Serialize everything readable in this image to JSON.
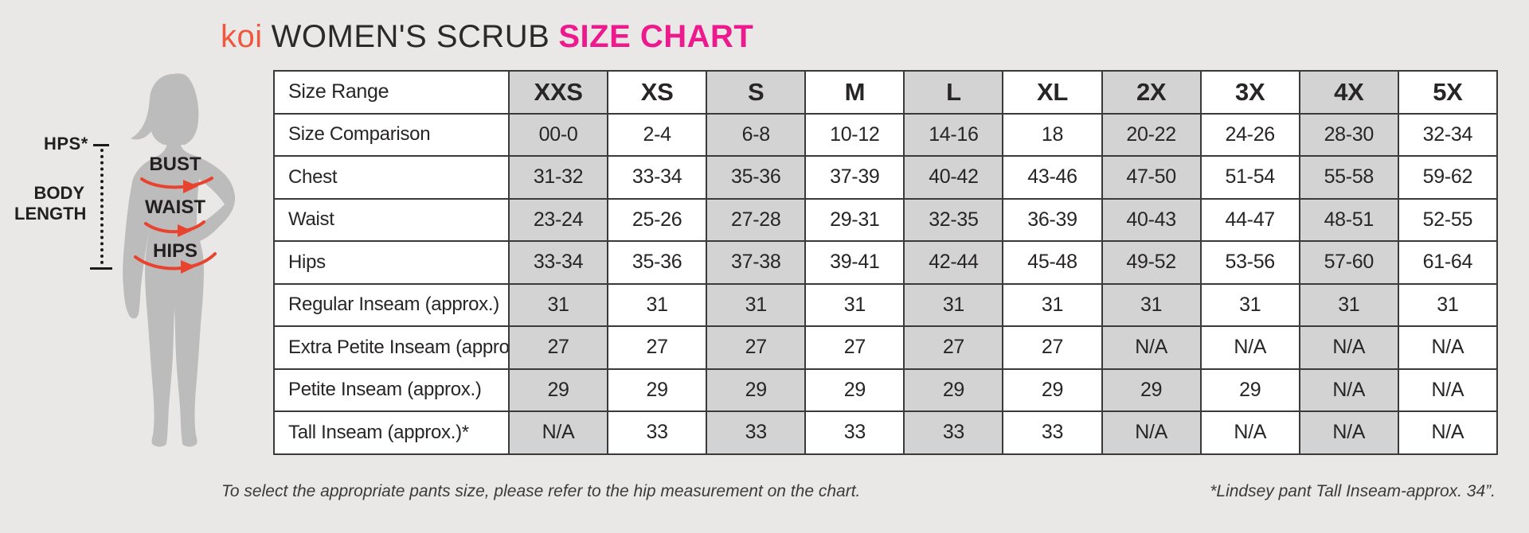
{
  "title": {
    "brand": "koi",
    "middle": "WOMEN'S SCRUB",
    "highlight": "SIZE CHART"
  },
  "figure": {
    "hps_label": "HPS*",
    "body_length_label": "BODY LENGTH",
    "bust_label": "BUST",
    "waist_label": "WAIST",
    "hips_label": "HIPS"
  },
  "chart_data": {
    "type": "table",
    "title": "koi WOMEN'S SCRUB SIZE CHART",
    "columns": [
      "Size Range",
      "XXS",
      "XS",
      "S",
      "M",
      "L",
      "XL",
      "2X",
      "3X",
      "4X",
      "5X"
    ],
    "shaded_columns": [
      "XXS",
      "S",
      "L",
      "2X",
      "4X"
    ],
    "rows": [
      {
        "label": "Size Comparison",
        "values": [
          "00-0",
          "2-4",
          "6-8",
          "10-12",
          "14-16",
          "18",
          "20-22",
          "24-26",
          "28-30",
          "32-34"
        ]
      },
      {
        "label": "Chest",
        "values": [
          "31-32",
          "33-34",
          "35-36",
          "37-39",
          "40-42",
          "43-46",
          "47-50",
          "51-54",
          "55-58",
          "59-62"
        ]
      },
      {
        "label": "Waist",
        "values": [
          "23-24",
          "25-26",
          "27-28",
          "29-31",
          "32-35",
          "36-39",
          "40-43",
          "44-47",
          "48-51",
          "52-55"
        ]
      },
      {
        "label": "Hips",
        "values": [
          "33-34",
          "35-36",
          "37-38",
          "39-41",
          "42-44",
          "45-48",
          "49-52",
          "53-56",
          "57-60",
          "61-64"
        ]
      },
      {
        "label": "Regular Inseam (approx.)",
        "values": [
          "31",
          "31",
          "31",
          "31",
          "31",
          "31",
          "31",
          "31",
          "31",
          "31"
        ]
      },
      {
        "label": "Extra Petite Inseam (approx.)",
        "values": [
          "27",
          "27",
          "27",
          "27",
          "27",
          "27",
          "N/A",
          "N/A",
          "N/A",
          "N/A"
        ]
      },
      {
        "label": "Petite Inseam (approx.)",
        "values": [
          "29",
          "29",
          "29",
          "29",
          "29",
          "29",
          "29",
          "29",
          "N/A",
          "N/A"
        ]
      },
      {
        "label": "Tall Inseam (approx.)*",
        "values": [
          "N/A",
          "33",
          "33",
          "33",
          "33",
          "33",
          "N/A",
          "N/A",
          "N/A",
          "N/A"
        ]
      }
    ]
  },
  "footer": {
    "left_note": "To select the appropriate pants size, please refer to the hip measurement on the chart.",
    "right_note": "*Lindsey pant Tall Inseam-approx. 34”."
  },
  "colors": {
    "brand_orange": "#f0573e",
    "highlight_pink": "#ec1a8d",
    "arrow_red": "#e8432f",
    "shaded_column": "#d3d3d3",
    "silhouette_gray": "#bdbcbc",
    "background": "#e9e8e7",
    "text_dark": "#272526"
  }
}
